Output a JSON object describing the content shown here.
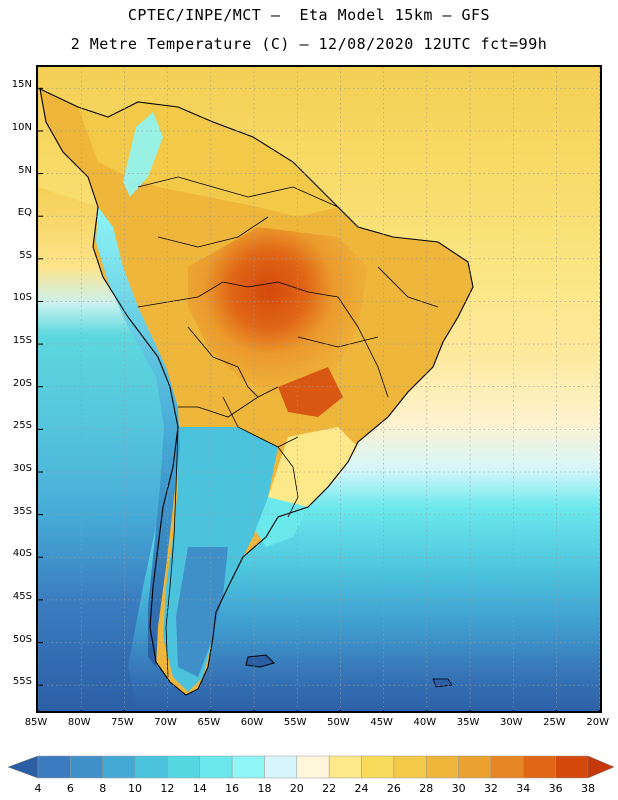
{
  "header": {
    "line1": "CPTEC/INPE/MCT –  Eta Model 15km – GFS",
    "line2": "2 Metre Temperature (C) – 12/08/2020 12UTC fct=99h"
  },
  "map": {
    "lat_labels": [
      "15N",
      "10N",
      "5N",
      "EQ",
      "5S",
      "10S",
      "15S",
      "20S",
      "25S",
      "30S",
      "35S",
      "40S",
      "45S",
      "50S",
      "55S"
    ],
    "lon_labels": [
      "85W",
      "80W",
      "75W",
      "70W",
      "65W",
      "60W",
      "55W",
      "50W",
      "45W",
      "40W",
      "35W",
      "30W",
      "25W",
      "20W"
    ],
    "lat_range": [
      17.5,
      -58.5
    ],
    "lon_range": [
      -85,
      -19.5
    ]
  },
  "colorbar": {
    "unit": "C",
    "levels": [
      4,
      6,
      8,
      10,
      12,
      14,
      16,
      18,
      20,
      22,
      24,
      26,
      28,
      30,
      32,
      34,
      36,
      38
    ],
    "colors": [
      "#2b5ea5",
      "#3a7bbf",
      "#3f8fc8",
      "#45a9d6",
      "#4cc3dd",
      "#55d7e2",
      "#6be8ec",
      "#8ff5f5",
      "#d6f6fb",
      "#fff6dc",
      "#fde98a",
      "#f8da5a",
      "#f3c94a",
      "#efb63c",
      "#eba230",
      "#e68624",
      "#e06616",
      "#d4480c",
      "#c4380a"
    ]
  }
}
